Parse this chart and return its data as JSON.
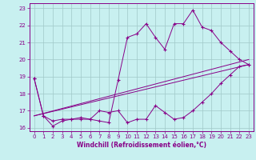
{
  "xlabel": "Windchill (Refroidissement éolien,°C)",
  "bg_color": "#c8f0f0",
  "grid_color": "#a0c8c8",
  "line_color": "#880088",
  "xlim": [
    -0.5,
    23.5
  ],
  "ylim": [
    15.8,
    23.3
  ],
  "xticks": [
    0,
    1,
    2,
    3,
    4,
    5,
    6,
    7,
    8,
    9,
    10,
    11,
    12,
    13,
    14,
    15,
    16,
    17,
    18,
    19,
    20,
    21,
    22,
    23
  ],
  "yticks": [
    16,
    17,
    18,
    19,
    20,
    21,
    22,
    23
  ],
  "line1_x": [
    0,
    1,
    2,
    3,
    4,
    5,
    6,
    7,
    8,
    9,
    10,
    11,
    12,
    13,
    14,
    15,
    16,
    17,
    18,
    19,
    20,
    21,
    22,
    23
  ],
  "line1_y": [
    18.9,
    16.7,
    16.1,
    16.4,
    16.5,
    16.5,
    16.5,
    16.4,
    16.3,
    18.8,
    21.3,
    21.5,
    22.1,
    21.3,
    20.6,
    22.1,
    22.1,
    22.9,
    21.9,
    21.7,
    21.0,
    20.5,
    20.0,
    19.7
  ],
  "line2_x": [
    0,
    1,
    2,
    3,
    4,
    5,
    6,
    7,
    8,
    9,
    10,
    11,
    12,
    13,
    14,
    15,
    16,
    17,
    18,
    19,
    20,
    21,
    22,
    23
  ],
  "line2_y": [
    18.9,
    16.7,
    16.4,
    16.5,
    16.5,
    16.6,
    16.5,
    17.0,
    16.9,
    17.0,
    16.3,
    16.5,
    16.5,
    17.3,
    16.9,
    16.5,
    16.6,
    17.0,
    17.5,
    18.0,
    18.6,
    19.1,
    19.6,
    19.7
  ],
  "line3_x": [
    0,
    23
  ],
  "line3_y": [
    16.7,
    19.7
  ],
  "line4_x": [
    0,
    23
  ],
  "line4_y": [
    16.7,
    20.0
  ],
  "xlabel_fontsize": 5.5,
  "tick_fontsize": 5.0
}
